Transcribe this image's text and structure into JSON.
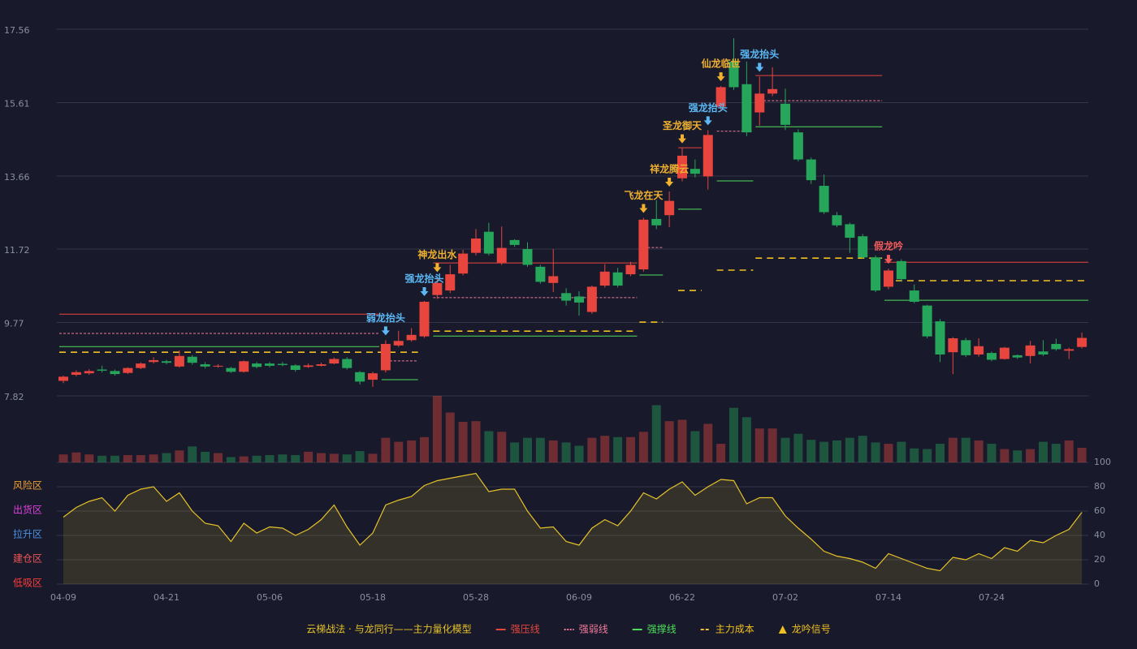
{
  "chart_data": {
    "type": "candlestick",
    "categories": [
      "04-09",
      null,
      null,
      null,
      null,
      null,
      null,
      null,
      "04-21",
      null,
      null,
      null,
      null,
      null,
      null,
      null,
      "05-06",
      null,
      null,
      null,
      null,
      null,
      null,
      null,
      "05-18",
      null,
      null,
      null,
      null,
      null,
      null,
      null,
      "05-28",
      null,
      null,
      null,
      null,
      null,
      null,
      null,
      "06-09",
      null,
      null,
      null,
      null,
      null,
      null,
      null,
      "06-22",
      null,
      null,
      null,
      null,
      null,
      null,
      null,
      "07-02",
      null,
      null,
      null,
      null,
      null,
      null,
      null,
      "07-14",
      null,
      null,
      null,
      null,
      null,
      null,
      null,
      "07-24",
      null,
      null,
      null,
      null,
      null,
      null,
      null
    ],
    "open": [
      8.22,
      8.38,
      8.42,
      8.52,
      8.48,
      8.43,
      8.56,
      8.72,
      8.74,
      8.6,
      8.86,
      8.66,
      8.6,
      8.56,
      8.46,
      8.68,
      8.68,
      8.67,
      8.63,
      8.59,
      8.62,
      8.68,
      8.8,
      8.45,
      8.25,
      8.5,
      9.16,
      9.3,
      9.4,
      10.5,
      10.62,
      11.07,
      11.62,
      12.18,
      11.36,
      11.96,
      11.72,
      11.25,
      10.82,
      10.55,
      10.46,
      10.05,
      10.75,
      11.1,
      11.05,
      11.18,
      12.52,
      12.62,
      13.6,
      13.85,
      13.65,
      15.5,
      16.7,
      16.1,
      15.35,
      15.85,
      15.58,
      14.82,
      14.1,
      13.4,
      12.62,
      12.38,
      12.06,
      11.5,
      10.72,
      11.4,
      10.62,
      10.22,
      9.8,
      8.98,
      9.3,
      8.92,
      8.96,
      8.8,
      8.9,
      8.88,
      9.0,
      9.2,
      9.02,
      9.12
    ],
    "high": [
      8.36,
      8.5,
      8.53,
      8.62,
      8.52,
      8.58,
      8.71,
      8.85,
      8.78,
      9.03,
      8.9,
      8.72,
      8.66,
      8.59,
      8.76,
      8.72,
      8.72,
      8.72,
      8.66,
      8.68,
      8.7,
      8.84,
      8.85,
      8.48,
      8.46,
      9.3,
      9.55,
      9.62,
      10.34,
      10.98,
      11.3,
      11.7,
      12.25,
      12.42,
      12.32,
      11.98,
      11.9,
      11.3,
      11.72,
      10.68,
      10.6,
      10.75,
      11.32,
      11.22,
      11.38,
      12.55,
      13.02,
      13.25,
      14.4,
      14.1,
      14.88,
      16.05,
      17.32,
      16.7,
      16.3,
      16.55,
      15.98,
      14.9,
      14.15,
      13.7,
      12.7,
      12.42,
      12.12,
      11.55,
      11.2,
      11.45,
      10.78,
      10.24,
      9.86,
      9.38,
      9.36,
      9.35,
      9.0,
      9.12,
      8.92,
      9.28,
      9.3,
      9.34,
      9.1,
      9.5
    ],
    "low": [
      8.16,
      8.34,
      8.38,
      8.44,
      8.36,
      8.4,
      8.53,
      8.68,
      8.66,
      8.57,
      8.65,
      8.55,
      8.57,
      8.43,
      8.44,
      8.55,
      8.58,
      8.61,
      8.46,
      8.56,
      8.6,
      8.66,
      8.52,
      8.12,
      8.06,
      8.44,
      9.12,
      9.26,
      9.36,
      10.4,
      10.55,
      11.02,
      11.55,
      11.55,
      11.3,
      11.78,
      11.25,
      10.8,
      10.58,
      10.22,
      9.95,
      10.0,
      10.7,
      10.7,
      11.0,
      11.12,
      12.25,
      12.3,
      13.52,
      13.62,
      13.3,
      15.4,
      15.95,
      14.72,
      15.0,
      15.78,
      14.88,
      14.05,
      13.45,
      12.65,
      12.3,
      11.62,
      11.46,
      10.58,
      10.65,
      10.85,
      10.28,
      9.35,
      8.72,
      8.4,
      8.85,
      8.86,
      8.74,
      8.78,
      8.8,
      8.68,
      8.88,
      9.02,
      8.8,
      9.08
    ],
    "close": [
      8.33,
      8.45,
      8.48,
      8.49,
      8.4,
      8.56,
      8.68,
      8.77,
      8.7,
      8.88,
      8.7,
      8.6,
      8.62,
      8.46,
      8.74,
      8.59,
      8.62,
      8.64,
      8.51,
      8.63,
      8.66,
      8.8,
      8.56,
      8.2,
      8.42,
      9.2,
      9.28,
      9.44,
      10.32,
      10.82,
      11.05,
      11.6,
      12.0,
      11.6,
      11.75,
      11.83,
      11.3,
      10.85,
      11.0,
      10.35,
      10.3,
      10.72,
      11.12,
      10.75,
      11.3,
      12.5,
      12.35,
      13.0,
      14.2,
      13.72,
      14.75,
      16.02,
      16.02,
      14.82,
      15.85,
      15.97,
      15.02,
      14.1,
      13.55,
      12.7,
      12.35,
      12.02,
      11.5,
      10.62,
      11.15,
      10.92,
      10.32,
      9.4,
      8.92,
      9.35,
      8.9,
      9.14,
      8.78,
      9.1,
      8.84,
      9.16,
      8.92,
      9.06,
      9.06,
      9.36
    ],
    "up_color": "#e8453f",
    "down_color": "#26a65b",
    "ylim": [
      7.82,
      17.56
    ],
    "yticks": [
      7.82,
      9.77,
      11.72,
      13.66,
      15.61,
      17.56
    ],
    "grid": true,
    "volume": {
      "values": [
        12,
        15,
        12,
        10,
        10,
        11,
        11,
        12,
        14,
        18,
        24,
        16,
        14,
        8,
        9,
        10,
        11,
        12,
        11,
        16,
        14,
        13,
        12,
        17,
        13,
        37,
        31,
        33,
        38,
        100,
        75,
        61,
        62,
        47,
        46,
        30,
        37,
        37,
        33,
        30,
        25,
        37,
        40,
        38,
        38,
        46,
        86,
        62,
        64,
        47,
        58,
        28,
        82,
        68,
        51,
        51,
        37,
        43,
        34,
        31,
        33,
        37,
        40,
        30,
        28,
        31,
        21,
        20,
        28,
        37,
        37,
        33,
        28,
        20,
        18,
        20,
        31,
        28,
        33,
        22
      ],
      "ylim": [
        0,
        100
      ]
    },
    "indicator": {
      "values": [
        55,
        63,
        68,
        71,
        60,
        73,
        78,
        80,
        68,
        75,
        60,
        50,
        48,
        35,
        50,
        42,
        47,
        46,
        40,
        45,
        53,
        65,
        47,
        32,
        42,
        65,
        69,
        72,
        81,
        85,
        87,
        89,
        91,
        76,
        78,
        78,
        60,
        46,
        47,
        35,
        32,
        46,
        53,
        48,
        60,
        75,
        70,
        78,
        84,
        73,
        80,
        86,
        85,
        66,
        71,
        71,
        56,
        46,
        37,
        27,
        23,
        21,
        18,
        13,
        25,
        21,
        17,
        13,
        11,
        22,
        20,
        25,
        21,
        30,
        27,
        36,
        34,
        40,
        45,
        59
      ],
      "color": "#e6c229",
      "ylim": [
        0,
        100
      ],
      "yticks": [
        0,
        20,
        40,
        60,
        80,
        100
      ],
      "tick_colors": [
        "#ff3b3b",
        "#f05555",
        "#4a90e2",
        "#e040e0",
        "#f0c020",
        "#44dd44"
      ],
      "zones": [
        {
          "value": 0,
          "label": "低吸区",
          "color": "#ff3b3b"
        },
        {
          "value": 20,
          "label": "建仓区",
          "color": "#f05555"
        },
        {
          "value": 40,
          "label": "拉升区",
          "color": "#4a90e2"
        },
        {
          "value": 60,
          "label": "出货区",
          "color": "#e040e0"
        },
        {
          "value": 80,
          "label": "风险区",
          "color": "#f0a030"
        }
      ]
    },
    "levels": [
      {
        "name": "强压线",
        "color": "#e8453f",
        "style": "solid",
        "segments": [
          {
            "start": 0,
            "end": 24,
            "value": 9.99
          },
          {
            "start": 29,
            "end": 44,
            "value": 11.35
          },
          {
            "start": 48,
            "end": 49,
            "value": 14.41
          },
          {
            "start": 54,
            "end": 63,
            "value": 16.33
          },
          {
            "start": 64,
            "end": 79,
            "value": 11.37
          }
        ]
      },
      {
        "name": "强弱线",
        "color": "#f07a9a",
        "style": "dotted",
        "segments": [
          {
            "start": 0,
            "end": 24,
            "value": 9.48
          },
          {
            "start": 25,
            "end": 27,
            "value": 8.75
          },
          {
            "start": 29,
            "end": 44,
            "value": 10.43
          },
          {
            "start": 45,
            "end": 46,
            "value": 11.76
          },
          {
            "start": 51,
            "end": 53,
            "value": 14.85
          },
          {
            "start": 54,
            "end": 63,
            "value": 15.66
          }
        ]
      },
      {
        "name": "强撑线",
        "color": "#4ddc5a",
        "style": "solid",
        "segments": [
          {
            "start": 0,
            "end": 24,
            "value": 9.13
          },
          {
            "start": 25,
            "end": 27,
            "value": 8.25
          },
          {
            "start": 29,
            "end": 44,
            "value": 9.41
          },
          {
            "start": 45,
            "end": 46,
            "value": 11.03
          },
          {
            "start": 48,
            "end": 49,
            "value": 12.78
          },
          {
            "start": 51,
            "end": 53,
            "value": 13.53
          },
          {
            "start": 54,
            "end": 63,
            "value": 14.97
          },
          {
            "start": 64,
            "end": 79,
            "value": 10.36
          }
        ]
      },
      {
        "name": "主力成本",
        "color": "#f0c020",
        "style": "dashed",
        "segments": [
          {
            "start": 0,
            "end": 27,
            "value": 8.98
          },
          {
            "start": 29,
            "end": 44,
            "value": 9.54
          },
          {
            "start": 45,
            "end": 46,
            "value": 9.78
          },
          {
            "start": 48,
            "end": 49,
            "value": 10.62
          },
          {
            "start": 51,
            "end": 53,
            "value": 11.16
          },
          {
            "start": 54,
            "end": 63,
            "value": 11.48
          },
          {
            "start": 64,
            "end": 79,
            "value": 10.88
          }
        ]
      }
    ],
    "signals": [
      {
        "index": 25,
        "label": "弱龙抬头",
        "color": "#5bb8f5"
      },
      {
        "index": 28,
        "label": "强龙抬头",
        "color": "#5bb8f5"
      },
      {
        "index": 29,
        "label": "神龙出水",
        "color": "#f0b030"
      },
      {
        "index": 45,
        "label": "飞龙在天",
        "color": "#f0b030"
      },
      {
        "index": 47,
        "label": "祥龙腾云",
        "color": "#f0b030"
      },
      {
        "index": 48,
        "label": "圣龙御天",
        "color": "#f0b030"
      },
      {
        "index": 50,
        "label": "强龙抬头",
        "color": "#5bb8f5"
      },
      {
        "index": 51,
        "label": "仙龙临世",
        "color": "#f0b030"
      },
      {
        "index": 54,
        "label": "强龙抬头",
        "color": "#5bb8f5"
      },
      {
        "index": 64,
        "label": "假龙吟",
        "color": "#f05a5a"
      }
    ],
    "legend_title": "云梯战法 · 与龙同行——主力量化模型",
    "legend_title_color": "#e6c229",
    "signal_legend": "龙吟信号",
    "signal_legend_color": "#f0c020"
  }
}
